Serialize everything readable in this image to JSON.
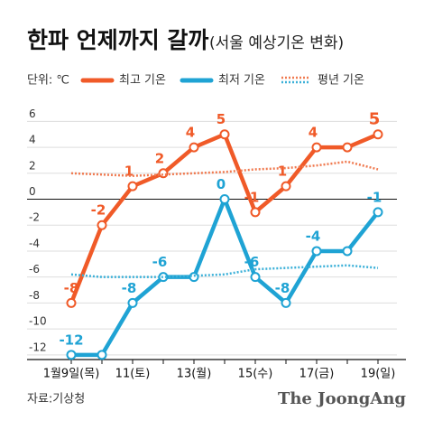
{
  "title": "한파 언제까지 갈까",
  "subtitle": "(서울 예상기온 변화)",
  "unit": "단위: ℃",
  "source": "자료:기상청",
  "brand": "The JoongAng",
  "chart_data": {
    "type": "line",
    "categories": [
      "1월9일(목)",
      null,
      "11(토)",
      null,
      "13(월)",
      null,
      "15(수)",
      null,
      "17(금)",
      null,
      "19(일)"
    ],
    "series": [
      {
        "name": "최고 기온",
        "color": "#f05a28",
        "values": [
          -8,
          -2,
          1,
          2,
          4,
          5,
          -1,
          1,
          4,
          4,
          5
        ],
        "value_labels": [
          "-8",
          "-2",
          "1",
          "2",
          "4",
          "5",
          "-1",
          "1",
          "4",
          null,
          "5"
        ]
      },
      {
        "name": "최저 기온",
        "color": "#1fa3d4",
        "values": [
          -12,
          -12,
          -8,
          -6,
          -6,
          0,
          -6,
          -8,
          -4,
          -4,
          -1
        ],
        "value_labels": [
          "-12",
          null,
          "-8",
          "-6",
          null,
          "0",
          "-6",
          "-8",
          "-4",
          null,
          "-1"
        ]
      },
      {
        "name": "평년 기온",
        "color": "#f07a50",
        "dotted": true,
        "values": [
          2,
          1.9,
          1.8,
          1.9,
          2,
          2.1,
          2.3,
          2.4,
          2.6,
          2.9,
          2.3
        ]
      },
      {
        "color": "#3bb0d8",
        "dotted": true,
        "values": [
          -5.8,
          -6,
          -6,
          -6,
          -5.9,
          -5.8,
          -5.4,
          -5.3,
          -5.2,
          -5.1,
          -5.3
        ]
      }
    ],
    "ylim": [
      -12.5,
      7
    ],
    "yticks": [
      6,
      4,
      2,
      0,
      -2,
      -4,
      -6,
      -8,
      -10,
      -12
    ],
    "grid": true
  }
}
